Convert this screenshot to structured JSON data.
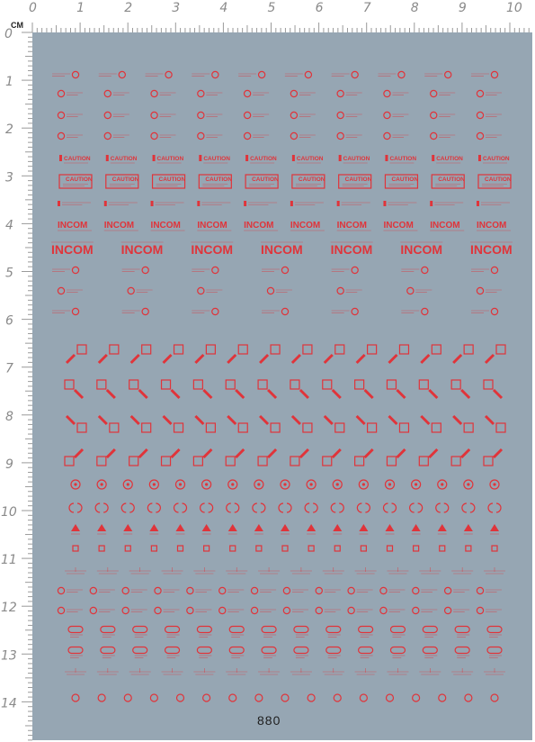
{
  "ruler": {
    "unit_label": "CM",
    "top_numbers": [
      "0",
      "1",
      "2",
      "3",
      "4",
      "5",
      "6",
      "7",
      "8",
      "9",
      "10"
    ],
    "left_numbers": [
      "0",
      "1",
      "2",
      "3",
      "4",
      "5",
      "6",
      "7",
      "8",
      "9",
      "10",
      "11",
      "12",
      "13",
      "14"
    ]
  },
  "sheet": {
    "background_color": "#96a6b3",
    "decal_color": "#e0343a",
    "number": "880",
    "words": {
      "caution": "CAUTION",
      "logo": "INCOM"
    },
    "decal_rows": [
      {
        "type": "text-circle-right",
        "count": 10
      },
      {
        "type": "circle-text",
        "count": 10
      },
      {
        "type": "circle-text",
        "count": 10
      },
      {
        "type": "circle-text",
        "count": 10
      },
      {
        "type": "caution-label",
        "count": 10
      },
      {
        "type": "caution-box",
        "count": 10
      },
      {
        "type": "stripe-text",
        "count": 10
      },
      {
        "type": "logo-small",
        "count": 10
      },
      {
        "type": "logo-large",
        "count": 7
      },
      {
        "type": "text-circle-right",
        "count": 7
      },
      {
        "type": "circle-text",
        "count": 7
      },
      {
        "type": "text-circle-right",
        "count": 7
      },
      {
        "type": "arrow-ne",
        "count": 14
      },
      {
        "type": "arrow-se",
        "count": 14
      },
      {
        "type": "arrow-se-alt",
        "count": 14
      },
      {
        "type": "arrow-ne-alt",
        "count": 14
      },
      {
        "type": "crosshair-circle",
        "count": 17
      },
      {
        "type": "bracket-circle",
        "count": 17
      },
      {
        "type": "triangle",
        "count": 17
      },
      {
        "type": "small-square",
        "count": 17
      },
      {
        "type": "tick-line",
        "count": 14
      },
      {
        "type": "circle-text",
        "count": 14
      },
      {
        "type": "circle-text",
        "count": 14
      },
      {
        "type": "pill",
        "count": 14
      },
      {
        "type": "pill",
        "count": 14
      },
      {
        "type": "tick-line",
        "count": 14
      },
      {
        "type": "ring",
        "count": 17
      }
    ]
  }
}
